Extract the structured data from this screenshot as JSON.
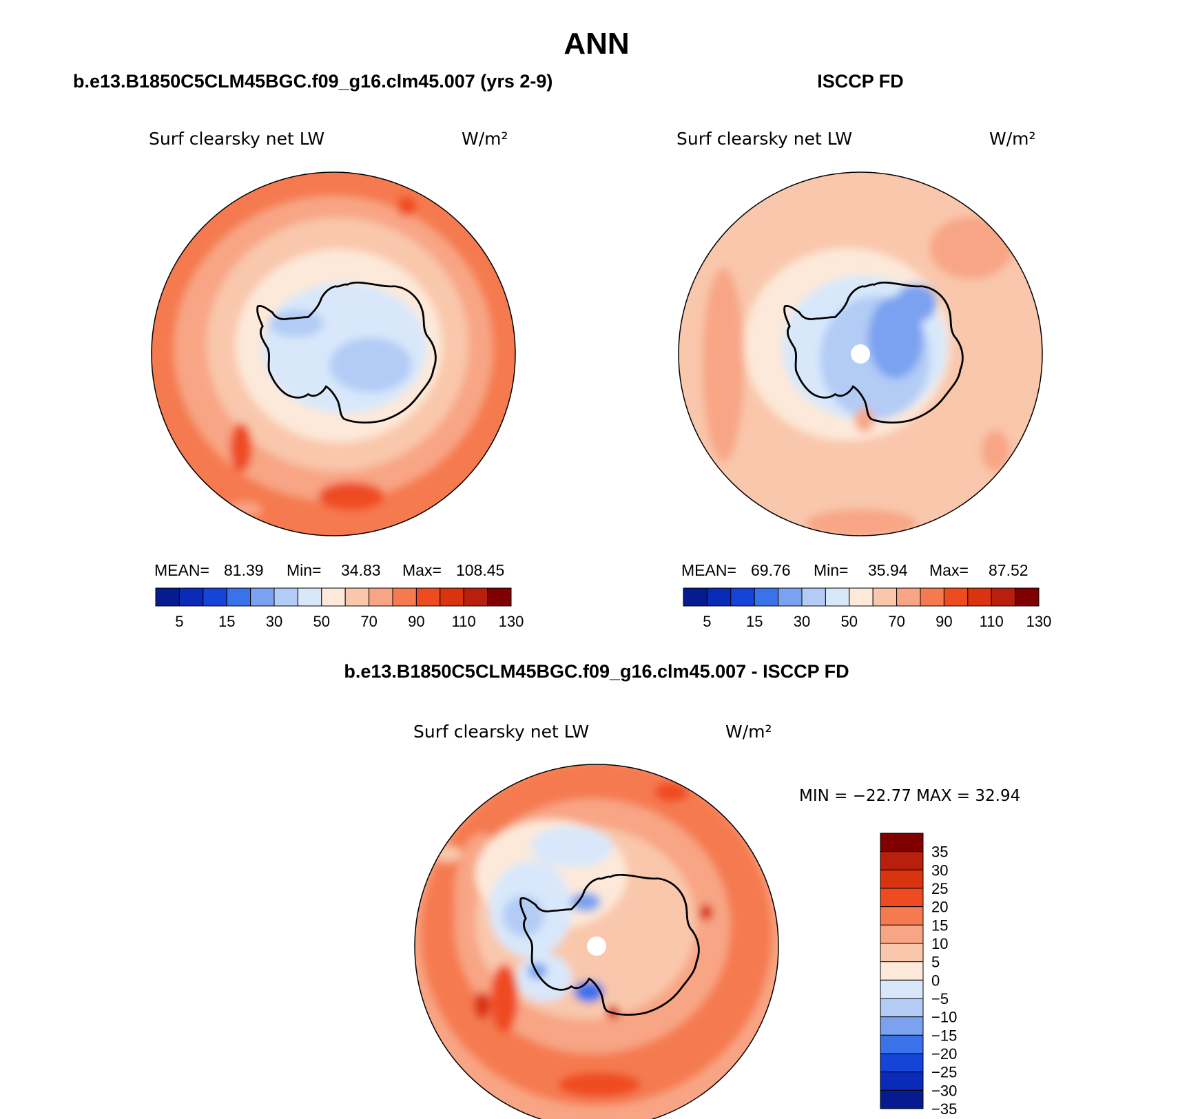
{
  "figure": {
    "season": "ANN",
    "colors": {
      "seq_palette": [
        "#061b8f",
        "#0a2ab8",
        "#1544d8",
        "#3a72ea",
        "#7aa2f0",
        "#b3ccf6",
        "#d8e8fa",
        "#fde9d9",
        "#f9c7ac",
        "#f8a585",
        "#f57a4f",
        "#ef4b20",
        "#d9330f",
        "#b81f0c",
        "#800000"
      ],
      "diff_palette": [
        "#061b8f",
        "#0a2ab8",
        "#1544d8",
        "#3a72ea",
        "#7aa2f0",
        "#b3ccf6",
        "#d8e8fa",
        "#fde9d9",
        "#f9c7ac",
        "#f8a585",
        "#f57a4f",
        "#ef4b20",
        "#d9330f",
        "#b81f0c",
        "#800000"
      ],
      "coastline": "#000000"
    }
  },
  "panels": [
    {
      "id": "model",
      "case_title": "b.e13.B1850C5CLM45BGC.f09_g16.clm45.007 (yrs 2-9)",
      "variable_label": "Surf clearsky net LW",
      "units": "W/m²",
      "stats": {
        "mean_label": "MEAN=",
        "mean": "81.39",
        "min_label": "Min=",
        "min": "34.83",
        "max_label": "Max=",
        "max": "108.45"
      },
      "colorbar_ticks": [
        "5",
        "15",
        "30",
        "50",
        "70",
        "90",
        "110",
        "130"
      ]
    },
    {
      "id": "obs",
      "case_title": "ISCCP FD",
      "variable_label": "Surf clearsky net LW",
      "units": "W/m²",
      "stats": {
        "mean_label": "MEAN=",
        "mean": "69.76",
        "min_label": "Min=",
        "min": "35.94",
        "max_label": "Max=",
        "max": "87.52"
      },
      "colorbar_ticks": [
        "5",
        "15",
        "30",
        "50",
        "70",
        "90",
        "110",
        "130"
      ]
    }
  ],
  "difference": {
    "title": "b.e13.B1850C5CLM45BGC.f09_g16.clm45.007 - ISCCP FD",
    "variable_label": "Surf clearsky net LW",
    "units": "W/m²",
    "stats_text": "MIN = −22.77 MAX =  32.94",
    "colorbar_ticks": [
      "35",
      "30",
      "25",
      "20",
      "15",
      "10",
      "5",
      "0",
      "−5",
      "−10",
      "−15",
      "−20",
      "−25",
      "−30",
      "−35"
    ]
  }
}
